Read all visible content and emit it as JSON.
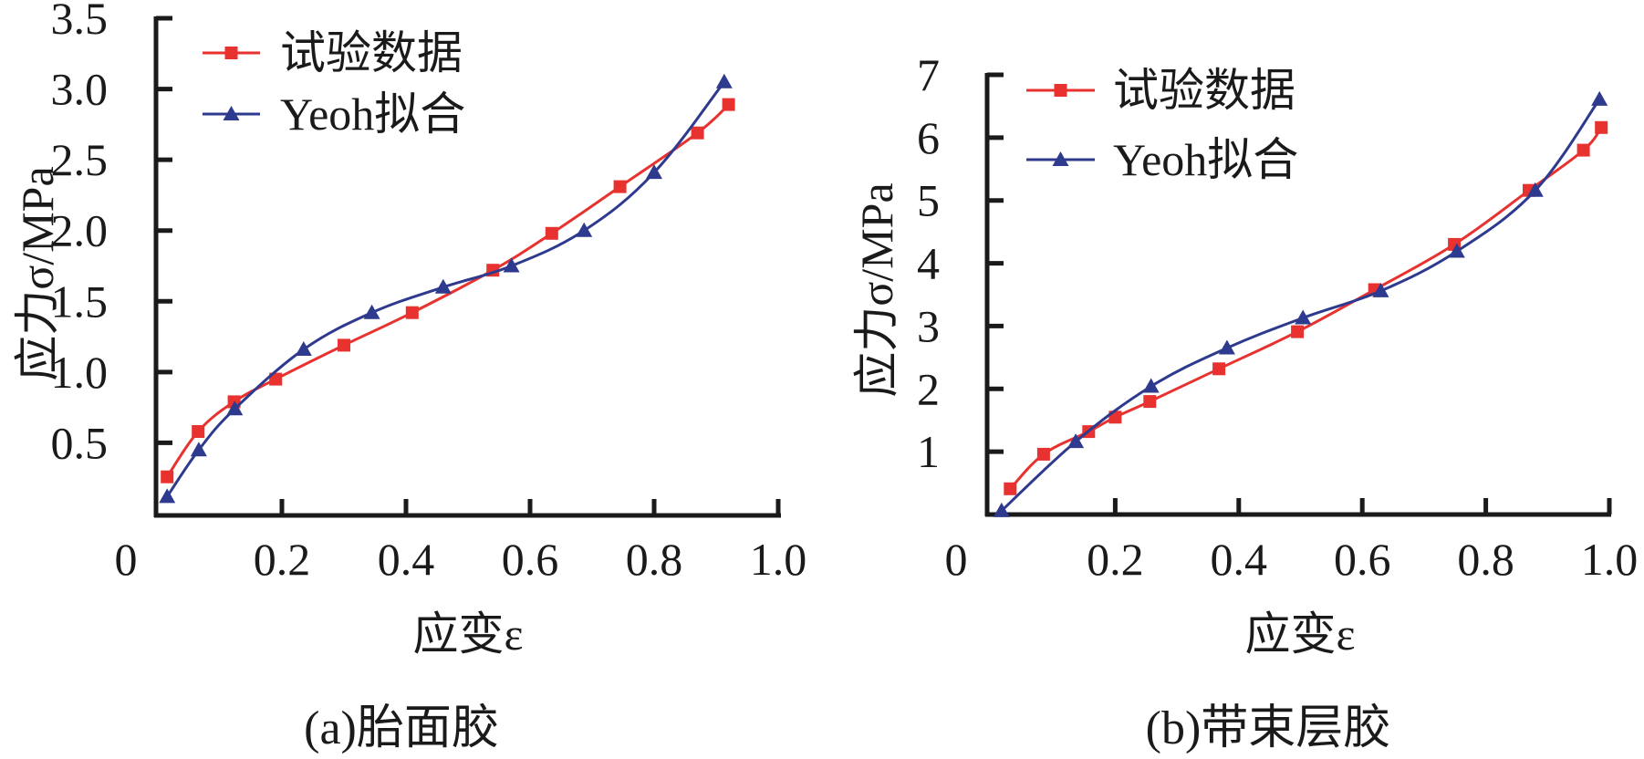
{
  "colors": {
    "experiment": "#e8322f",
    "fit": "#2e3a8e",
    "axis": "#1a1a1a"
  },
  "chart_data": [
    {
      "type": "line",
      "caption": "(a)胎面胶",
      "xlabel": "应变ε",
      "ylabel": "应力σ/MPa",
      "xlim": [
        0,
        1.0
      ],
      "ylim": [
        0,
        3.5
      ],
      "xticks": [
        "0",
        "0.2",
        "0.4",
        "0.6",
        "0.8",
        "1.0"
      ],
      "xtick_values": [
        0,
        0.2,
        0.4,
        0.6,
        0.8,
        1.0
      ],
      "yticks": [
        "0.5",
        "1.0",
        "1.5",
        "2.0",
        "2.5",
        "3.0",
        "3.5"
      ],
      "ytick_values": [
        0.5,
        1.0,
        1.5,
        2.0,
        2.5,
        3.0,
        3.5
      ],
      "grid": false,
      "legend_position": "top-left",
      "series": [
        {
          "name": "试验数据",
          "marker": "square",
          "color_key": "experiment",
          "x": [
            0.015,
            0.065,
            0.123,
            0.19,
            0.3,
            0.41,
            0.54,
            0.635,
            0.745,
            0.87,
            0.92
          ],
          "y": [
            0.26,
            0.58,
            0.79,
            0.95,
            1.19,
            1.42,
            1.72,
            1.98,
            2.31,
            2.69,
            2.89
          ]
        },
        {
          "name": "Yeoh拟合",
          "marker": "triangle",
          "color_key": "fit",
          "x": [
            0.015,
            0.066,
            0.124,
            0.235,
            0.345,
            0.46,
            0.57,
            0.687,
            0.8,
            0.913
          ],
          "y": [
            0.12,
            0.45,
            0.74,
            1.16,
            1.42,
            1.6,
            1.75,
            2.0,
            2.41,
            3.05
          ]
        }
      ]
    },
    {
      "type": "line",
      "caption": "(b)带束层胶",
      "xlabel": "应变ε",
      "ylabel": "应力σ/MPa",
      "xlim": [
        0,
        1.0
      ],
      "ylim": [
        0,
        7
      ],
      "xticks": [
        "0",
        "0.2",
        "0.4",
        "0.6",
        "0.8",
        "1.0"
      ],
      "xtick_values": [
        0,
        0.2,
        0.4,
        0.6,
        0.8,
        1.0
      ],
      "yticks": [
        "1",
        "2",
        "3",
        "4",
        "5",
        "6",
        "7"
      ],
      "ytick_values": [
        1,
        2,
        3,
        4,
        5,
        6,
        7
      ],
      "grid": false,
      "legend_position": "top-left",
      "series": [
        {
          "name": "试验数据",
          "marker": "square",
          "color_key": "experiment",
          "x": [
            0.03,
            0.084,
            0.157,
            0.2,
            0.256,
            0.368,
            0.495,
            0.62,
            0.749,
            0.87,
            0.958,
            0.987
          ],
          "y": [
            0.41,
            0.96,
            1.32,
            1.55,
            1.8,
            2.32,
            2.91,
            3.58,
            4.3,
            5.16,
            5.8,
            6.16
          ]
        },
        {
          "name": "Yeoh拟合",
          "marker": "triangle",
          "color_key": "fit",
          "x": [
            0.016,
            0.136,
            0.258,
            0.381,
            0.504,
            0.63,
            0.753,
            0.88,
            0.984
          ],
          "y": [
            0.06,
            1.16,
            2.04,
            2.65,
            3.13,
            3.56,
            4.19,
            5.16,
            6.61
          ]
        }
      ]
    }
  ]
}
